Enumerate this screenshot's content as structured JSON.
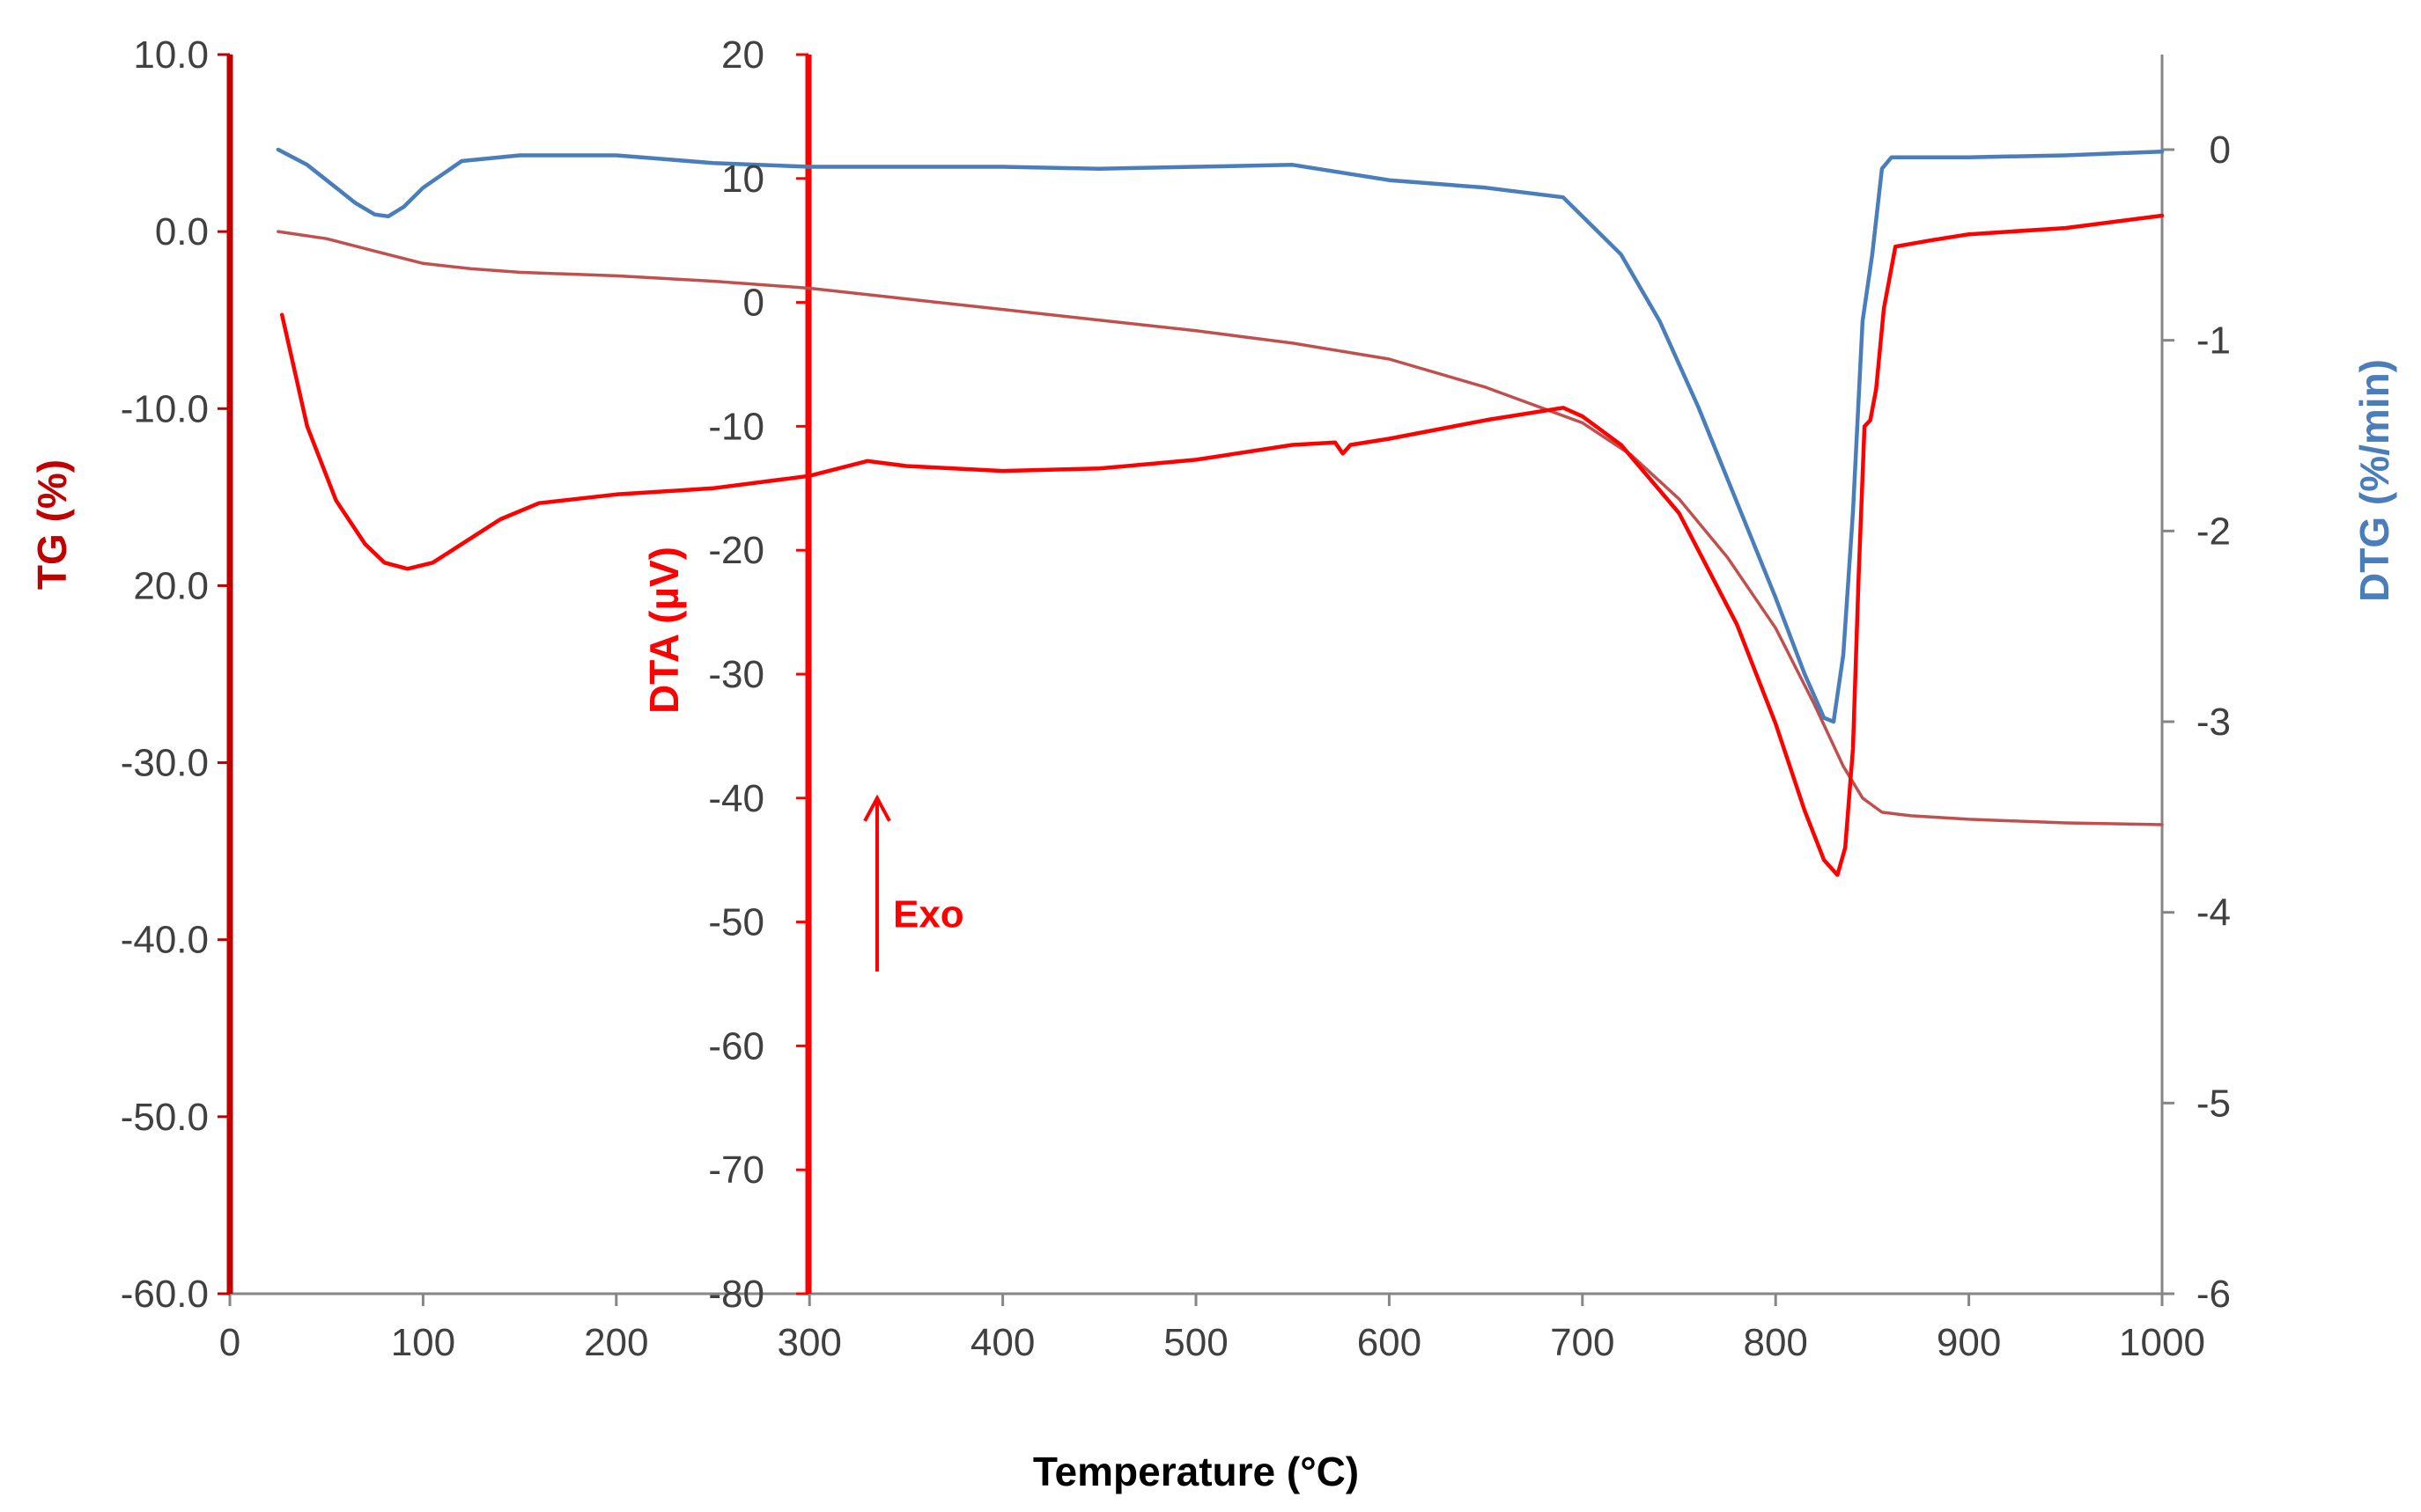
{
  "chart_data": {
    "type": "line",
    "title": "",
    "xlabel": "Temperature (°C)",
    "xlim": [
      0,
      1000
    ],
    "x_ticks": [
      "0",
      "100",
      "200",
      "300",
      "400",
      "500",
      "600",
      "700",
      "800",
      "900",
      "1000"
    ],
    "grid": false,
    "axes": {
      "tg": {
        "label": "TG (%)",
        "range": [
          -60,
          10
        ],
        "ticks": [
          "10.0",
          "0.0",
          "-10.0",
          "20.0",
          "-30.0",
          "-40.0",
          "-50.0",
          "-60.0"
        ],
        "color": "#c00000"
      },
      "dta": {
        "label": "DTA (µV)",
        "range": [
          -80,
          20
        ],
        "ticks": [
          "20",
          "10",
          "0",
          "-10",
          "-20",
          "-30",
          "-40",
          "-50",
          "-60",
          "-70",
          "-80"
        ],
        "color": "#ff0000"
      },
      "dtg": {
        "label": "DTG  (%/min)",
        "range": [
          -6,
          0.5
        ],
        "ticks": [
          "0",
          "-1",
          "-2",
          "-3",
          "-4",
          "-5",
          "-6"
        ],
        "color": "#4a7ebb"
      }
    },
    "annotation": {
      "text": "Exo",
      "direction": "up",
      "x": 335,
      "dta_from": -54,
      "dta_to": -40
    },
    "series": [
      {
        "name": "TG",
        "axis": "tg",
        "color": "#c0504d",
        "x": [
          25,
          50,
          75,
          100,
          125,
          150,
          200,
          250,
          300,
          350,
          400,
          450,
          500,
          550,
          600,
          650,
          700,
          725,
          750,
          775,
          800,
          820,
          835,
          845,
          855,
          870,
          900,
          950,
          1000
        ],
        "y": [
          0.0,
          -0.4,
          -1.1,
          -1.8,
          -2.1,
          -2.3,
          -2.5,
          -2.8,
          -3.2,
          -3.8,
          -4.4,
          -5.0,
          -5.6,
          -6.3,
          -7.2,
          -8.8,
          -10.8,
          -12.6,
          -15.1,
          -18.4,
          -22.4,
          -26.7,
          -30.2,
          -32.0,
          -32.8,
          -33.0,
          -33.2,
          -33.4,
          -33.5
        ]
      },
      {
        "name": "DTA",
        "axis": "dta",
        "color": "#ff0000",
        "x": [
          27,
          40,
          55,
          70,
          80,
          92,
          105,
          120,
          140,
          160,
          200,
          250,
          300,
          330,
          350,
          400,
          450,
          500,
          550,
          572,
          576,
          580,
          600,
          650,
          690,
          700,
          720,
          750,
          780,
          800,
          815,
          825,
          832,
          836,
          840,
          843,
          846,
          849,
          852,
          856,
          862,
          880,
          900,
          950,
          1000
        ],
        "y": [
          -1,
          -10,
          -16,
          -19.5,
          -21,
          -21.5,
          -21,
          -19.5,
          -17.5,
          -16.2,
          -15.5,
          -15,
          -14,
          -12.8,
          -13.2,
          -13.6,
          -13.4,
          -12.7,
          -11.5,
          -11.3,
          -12.2,
          -11.5,
          -11,
          -9.5,
          -8.5,
          -9.2,
          -11.5,
          -17,
          -26,
          -34,
          -41,
          -45,
          -46.2,
          -44,
          -36,
          -22,
          -10,
          -9.5,
          -7,
          -0.5,
          4.5,
          5,
          5.5,
          6,
          7
        ]
      },
      {
        "name": "DTG",
        "axis": "dtg",
        "color": "#4a7ebb",
        "x": [
          25,
          40,
          55,
          65,
          75,
          82,
          90,
          100,
          120,
          150,
          200,
          250,
          300,
          350,
          400,
          450,
          500,
          550,
          600,
          650,
          690,
          700,
          720,
          740,
          760,
          780,
          800,
          815,
          825,
          830,
          835,
          840,
          845,
          850,
          855,
          860,
          870,
          900,
          950,
          1000
        ],
        "y": [
          0,
          -0.08,
          -0.2,
          -0.28,
          -0.34,
          -0.35,
          -0.3,
          -0.2,
          -0.06,
          -0.03,
          -0.03,
          -0.07,
          -0.09,
          -0.09,
          -0.09,
          -0.1,
          -0.09,
          -0.08,
          -0.16,
          -0.2,
          -0.25,
          -0.35,
          -0.55,
          -0.9,
          -1.35,
          -1.85,
          -2.35,
          -2.75,
          -2.98,
          -3.0,
          -2.65,
          -1.9,
          -0.9,
          -0.55,
          -0.1,
          -0.04,
          -0.04,
          -0.04,
          -0.03,
          -0.01
        ]
      }
    ]
  }
}
